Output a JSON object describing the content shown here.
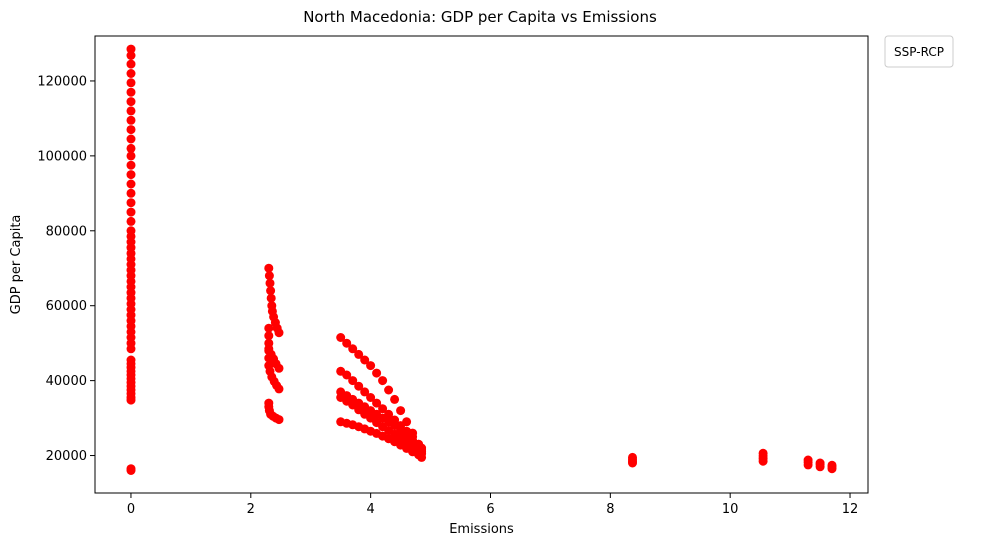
{
  "chart_data": {
    "type": "scatter",
    "title": "North Macedonia: GDP per Capita vs Emissions",
    "xlabel": "Emissions",
    "ylabel": "GDP per Capita",
    "xlim": [
      -0.6,
      12.3
    ],
    "ylim": [
      10000,
      132000
    ],
    "xticks": [
      0,
      2,
      4,
      6,
      8,
      10,
      12
    ],
    "yticks": [
      20000,
      40000,
      60000,
      80000,
      100000,
      120000
    ],
    "grid": false,
    "legend": {
      "title": "SSP-RCP",
      "placement": "outside-top-right"
    },
    "marker_color": "#ff0000",
    "series": [
      {
        "points": [
          [
            0,
            16000
          ],
          [
            0,
            16500
          ],
          [
            0,
            34800
          ],
          [
            0,
            35500
          ],
          [
            0,
            36500
          ],
          [
            0,
            37500
          ],
          [
            0,
            38500
          ],
          [
            0,
            39500
          ],
          [
            0,
            40500
          ],
          [
            0,
            41500
          ],
          [
            0,
            42500
          ],
          [
            0,
            43500
          ],
          [
            0,
            44500
          ],
          [
            0,
            45500
          ],
          [
            0,
            48500
          ],
          [
            0,
            50000
          ],
          [
            0,
            51500
          ],
          [
            0,
            53000
          ],
          [
            0,
            54500
          ],
          [
            0,
            56000
          ],
          [
            0,
            57500
          ],
          [
            0,
            59000
          ],
          [
            0,
            60500
          ],
          [
            0,
            62000
          ],
          [
            0,
            63500
          ],
          [
            0,
            65000
          ],
          [
            0,
            66500
          ],
          [
            0,
            68000
          ],
          [
            0,
            69500
          ],
          [
            0,
            71000
          ],
          [
            0,
            72500
          ],
          [
            0,
            74000
          ],
          [
            0,
            75500
          ],
          [
            0,
            77000
          ],
          [
            0,
            78500
          ],
          [
            0,
            80000
          ],
          [
            0,
            82500
          ],
          [
            0,
            85000
          ],
          [
            0,
            87500
          ],
          [
            0,
            90000
          ],
          [
            0,
            92500
          ],
          [
            0,
            95000
          ],
          [
            0,
            97500
          ],
          [
            0,
            100000
          ],
          [
            0,
            102000
          ],
          [
            0,
            104500
          ],
          [
            0,
            107000
          ],
          [
            0,
            109500
          ],
          [
            0,
            112000
          ],
          [
            0,
            114500
          ],
          [
            0,
            117000
          ],
          [
            0,
            119500
          ],
          [
            0,
            122000
          ],
          [
            0,
            124500
          ],
          [
            0,
            126800
          ],
          [
            0,
            128500
          ],
          [
            2.3,
            70000
          ],
          [
            2.31,
            68000
          ],
          [
            2.32,
            66000
          ],
          [
            2.33,
            64000
          ],
          [
            2.34,
            62000
          ],
          [
            2.35,
            60000
          ],
          [
            2.36,
            58500
          ],
          [
            2.38,
            57000
          ],
          [
            2.41,
            55500
          ],
          [
            2.44,
            54000
          ],
          [
            2.47,
            52800
          ],
          [
            2.3,
            54000
          ],
          [
            2.3,
            52000
          ],
          [
            2.3,
            50000
          ],
          [
            2.3,
            48000
          ],
          [
            2.3,
            46000
          ],
          [
            2.3,
            44000
          ],
          [
            2.32,
            42500
          ],
          [
            2.35,
            41000
          ],
          [
            2.39,
            39800
          ],
          [
            2.43,
            38700
          ],
          [
            2.47,
            37800
          ],
          [
            2.3,
            48500
          ],
          [
            2.34,
            47000
          ],
          [
            2.38,
            45800
          ],
          [
            2.42,
            44500
          ],
          [
            2.47,
            43300
          ],
          [
            2.3,
            34000
          ],
          [
            2.3,
            33000
          ],
          [
            2.31,
            32000
          ],
          [
            2.33,
            31000
          ],
          [
            2.37,
            30500
          ],
          [
            2.42,
            30000
          ],
          [
            2.47,
            29600
          ],
          [
            3.5,
            51500
          ],
          [
            3.6,
            50000
          ],
          [
            3.7,
            48500
          ],
          [
            3.8,
            47000
          ],
          [
            3.9,
            45500
          ],
          [
            4.0,
            44000
          ],
          [
            4.1,
            42000
          ],
          [
            4.2,
            40000
          ],
          [
            4.3,
            37500
          ],
          [
            4.4,
            35000
          ],
          [
            4.5,
            32000
          ],
          [
            4.6,
            29000
          ],
          [
            4.7,
            26000
          ],
          [
            4.8,
            23000
          ],
          [
            4.85,
            21500
          ],
          [
            3.5,
            42500
          ],
          [
            3.6,
            41500
          ],
          [
            3.7,
            40000
          ],
          [
            3.8,
            38500
          ],
          [
            3.9,
            37000
          ],
          [
            4.0,
            35500
          ],
          [
            4.1,
            34000
          ],
          [
            4.2,
            32500
          ],
          [
            4.3,
            31000
          ],
          [
            4.4,
            29500
          ],
          [
            4.5,
            28000
          ],
          [
            4.6,
            26500
          ],
          [
            4.7,
            25000
          ],
          [
            4.8,
            23000
          ],
          [
            4.85,
            22000
          ],
          [
            3.5,
            37000
          ],
          [
            3.6,
            36000
          ],
          [
            3.7,
            35000
          ],
          [
            3.8,
            34000
          ],
          [
            3.9,
            33000
          ],
          [
            4.0,
            32000
          ],
          [
            4.1,
            31000
          ],
          [
            4.2,
            30000
          ],
          [
            4.3,
            29000
          ],
          [
            4.4,
            28000
          ],
          [
            4.5,
            26800
          ],
          [
            4.6,
            25500
          ],
          [
            4.7,
            24000
          ],
          [
            4.8,
            22500
          ],
          [
            4.85,
            21000
          ],
          [
            3.5,
            35500
          ],
          [
            3.6,
            34500
          ],
          [
            3.7,
            33500
          ],
          [
            3.8,
            32200
          ],
          [
            3.9,
            31000
          ],
          [
            4.0,
            30000
          ],
          [
            4.1,
            28800
          ],
          [
            4.2,
            27700
          ],
          [
            4.3,
            26700
          ],
          [
            4.4,
            25700
          ],
          [
            4.5,
            24700
          ],
          [
            4.6,
            23700
          ],
          [
            4.7,
            22700
          ],
          [
            4.8,
            21700
          ],
          [
            4.85,
            20500
          ],
          [
            3.5,
            29000
          ],
          [
            3.6,
            28600
          ],
          [
            3.7,
            28200
          ],
          [
            3.8,
            27700
          ],
          [
            3.9,
            27100
          ],
          [
            4.0,
            26500
          ],
          [
            4.1,
            25900
          ],
          [
            4.2,
            25200
          ],
          [
            4.3,
            24500
          ],
          [
            4.4,
            23700
          ],
          [
            4.5,
            22800
          ],
          [
            4.6,
            21900
          ],
          [
            4.7,
            21000
          ],
          [
            4.8,
            20200
          ],
          [
            4.85,
            19500
          ],
          [
            8.37,
            18000
          ],
          [
            8.37,
            18500
          ],
          [
            8.37,
            19000
          ],
          [
            8.37,
            19500
          ],
          [
            10.55,
            18500
          ],
          [
            10.55,
            19200
          ],
          [
            10.55,
            19900
          ],
          [
            10.55,
            20600
          ],
          [
            11.3,
            17500
          ],
          [
            11.3,
            18200
          ],
          [
            11.3,
            18800
          ],
          [
            11.5,
            17000
          ],
          [
            11.5,
            17600
          ],
          [
            11.5,
            18000
          ],
          [
            11.7,
            16500
          ],
          [
            11.7,
            17000
          ],
          [
            11.7,
            17400
          ]
        ]
      }
    ]
  }
}
